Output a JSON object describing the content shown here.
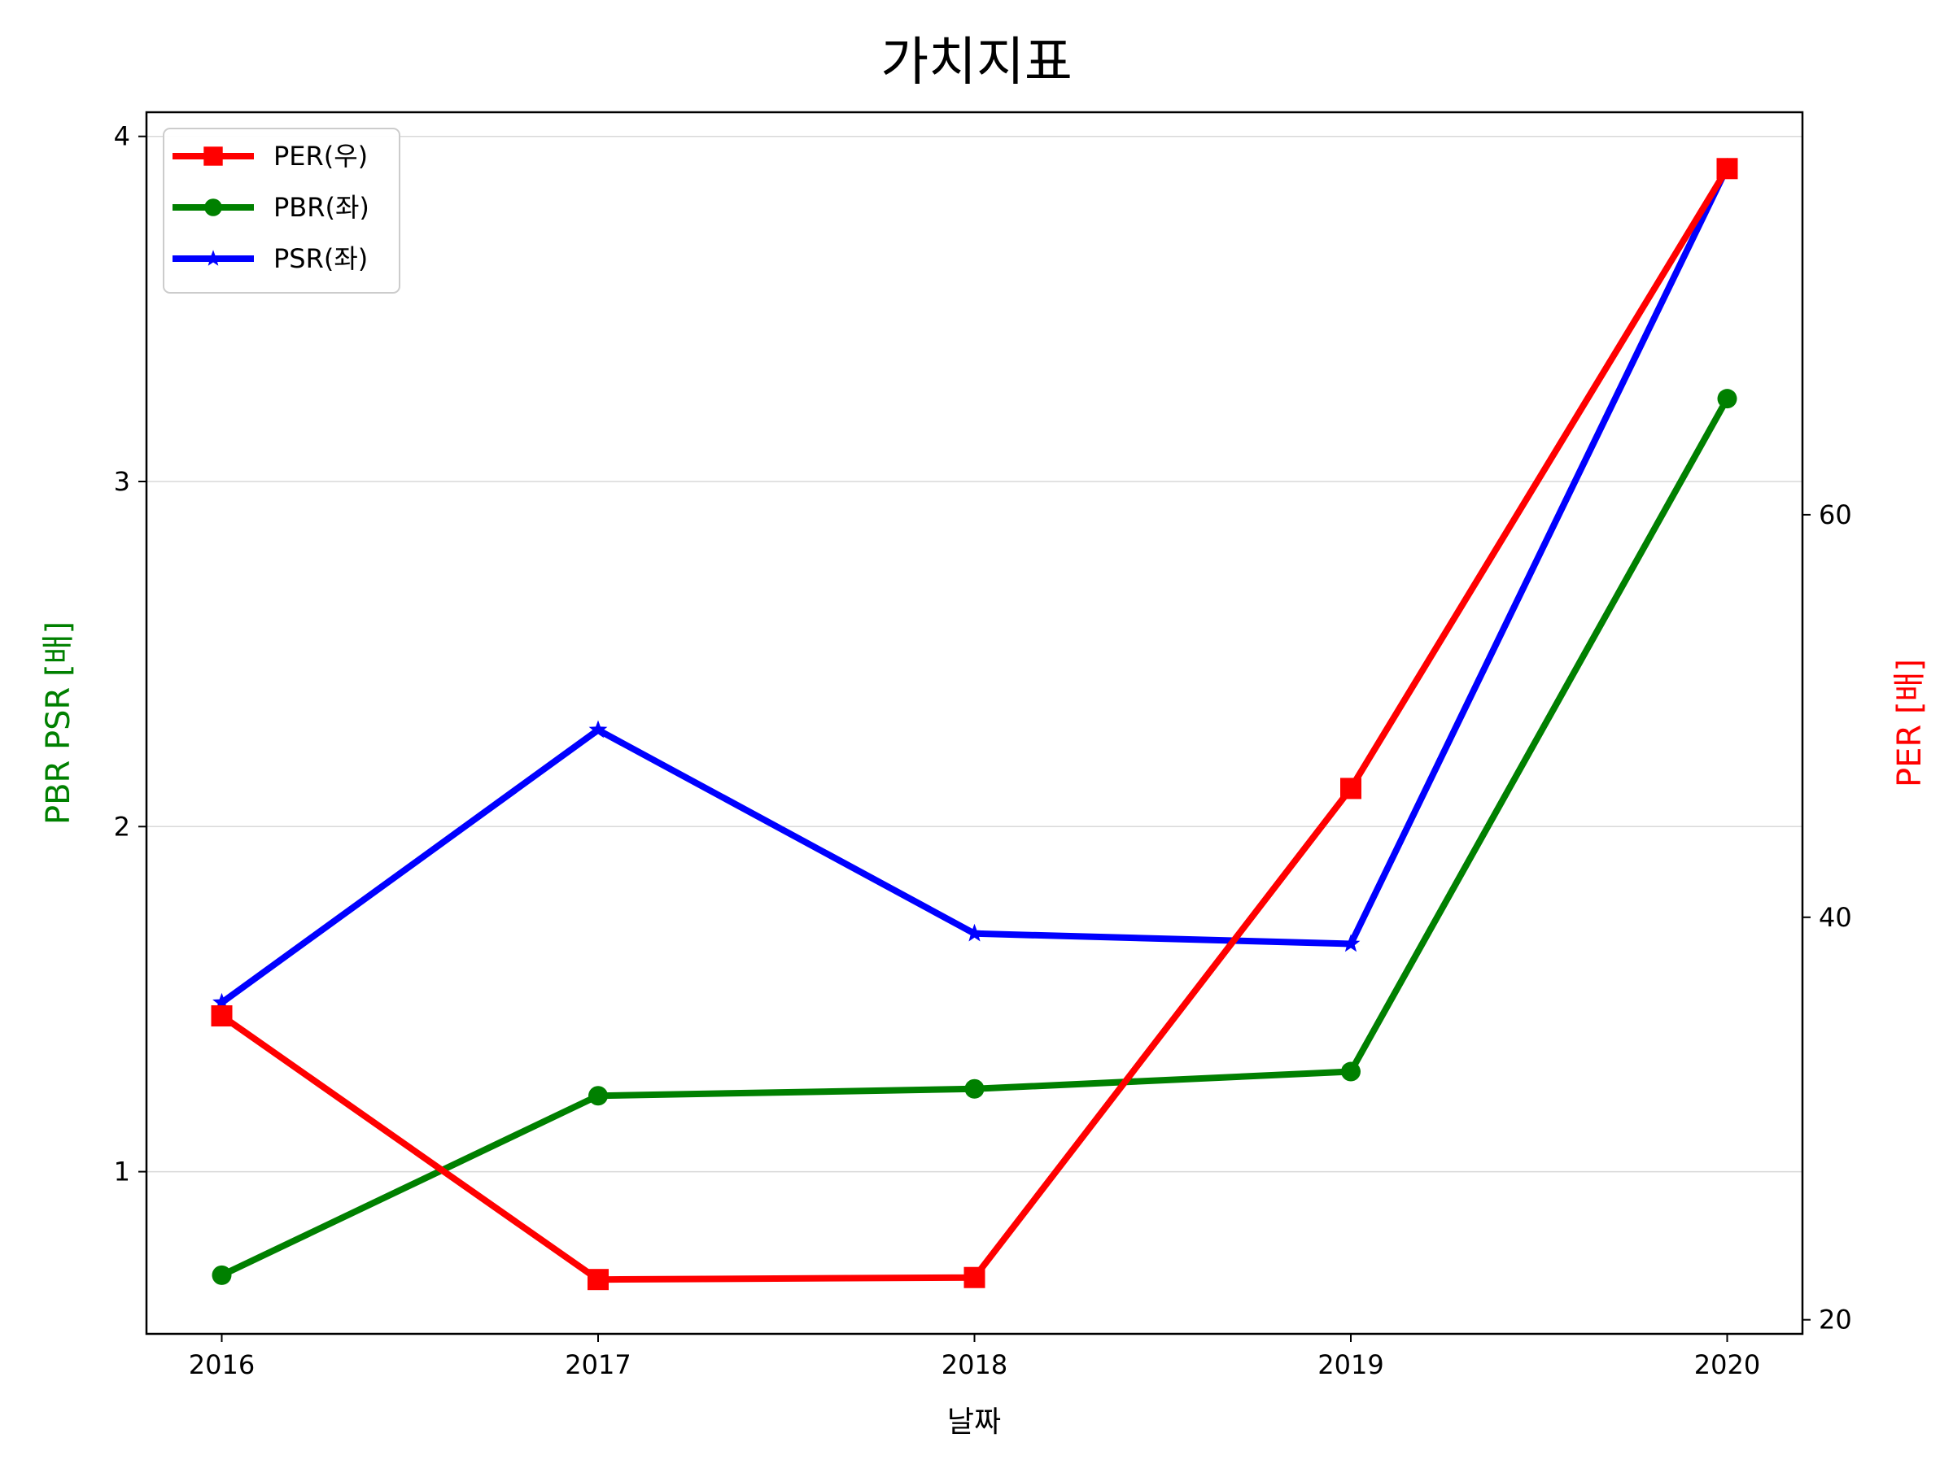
{
  "chart_data": {
    "type": "line",
    "title": "가치지표",
    "xlabel": "날짜",
    "ylabel_left": "PBR PSR [배]",
    "ylabel_right": "PER [배]",
    "x": [
      2016,
      2017,
      2018,
      2019,
      2020
    ],
    "xlim": [
      2015.8,
      2020.2
    ],
    "ylim_left": [
      0.53,
      4.07
    ],
    "ylim_right": [
      19.3,
      80.0
    ],
    "yticks_left": [
      1,
      2,
      3,
      4
    ],
    "yticks_right": [
      20,
      40,
      60
    ],
    "grid": "horizontal-left-axis",
    "legend_position": "top-left",
    "series": [
      {
        "name": "PER(우)",
        "axis": "right",
        "marker": "square",
        "color": "#ff0000",
        "values": [
          35.1,
          22.0,
          22.1,
          46.4,
          77.2
        ]
      },
      {
        "name": "PBR(좌)",
        "axis": "left",
        "marker": "circle",
        "color": "#008000",
        "values": [
          0.7,
          1.22,
          1.24,
          1.29,
          3.24
        ]
      },
      {
        "name": "PSR(좌)",
        "axis": "left",
        "marker": "star",
        "color": "#0000ff",
        "values": [
          1.49,
          2.28,
          1.69,
          1.66,
          3.91
        ]
      }
    ],
    "colors": {
      "left_axis_label": "#008000",
      "right_axis_label": "#ff0000",
      "grid": "#d9d9d9"
    }
  }
}
